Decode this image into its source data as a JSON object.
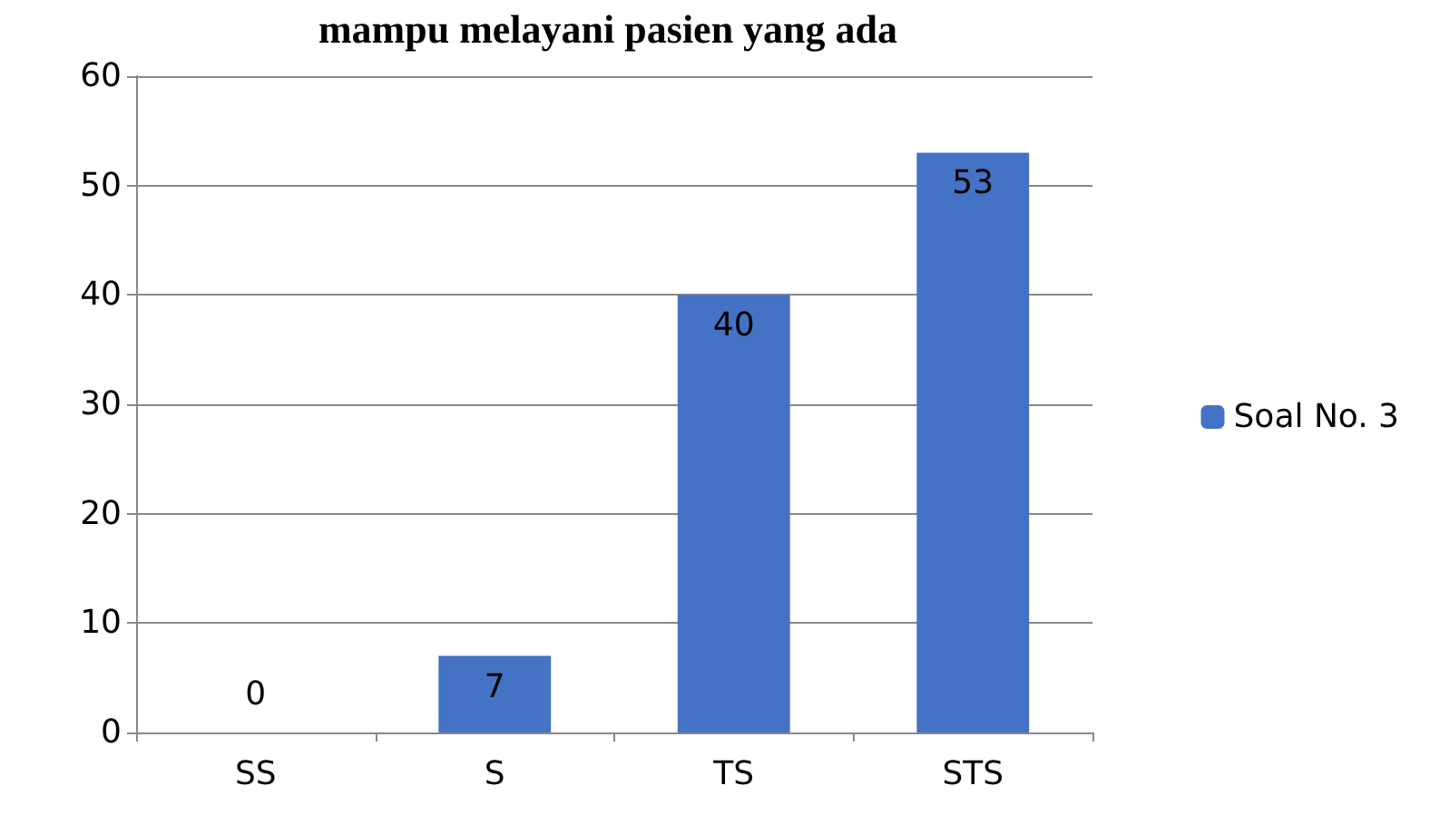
{
  "chart_data": {
    "type": "bar",
    "title": "mampu melayani pasien yang ada",
    "categories": [
      "SS",
      "S",
      "TS",
      "STS"
    ],
    "series": [
      {
        "name": "Soal No. 3",
        "color": "#4472c4",
        "values": [
          0,
          7,
          40,
          53
        ]
      }
    ],
    "ylim": [
      0,
      60
    ],
    "yticks": [
      0,
      10,
      20,
      30,
      40,
      50,
      60
    ],
    "grid": "y",
    "legend": "right",
    "data_labels": true
  }
}
